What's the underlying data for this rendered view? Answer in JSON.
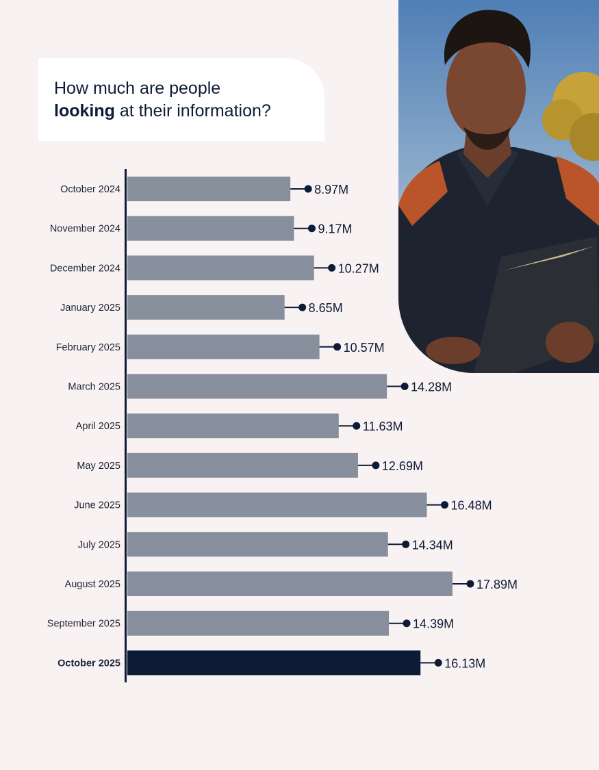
{
  "header": {
    "line1": "How much are people",
    "emphasis": "looking",
    "line2_rest": " at their information?"
  },
  "photo": {
    "alt": "Man looking at a tablet outdoors"
  },
  "colors": {
    "bar": "#868f9b",
    "highlight": "#0d1b36",
    "background": "#f9f2f2",
    "axis": "#0d1b36"
  },
  "chart_data": {
    "type": "bar",
    "orientation": "horizontal",
    "title": "How much are people looking at their information?",
    "categories": [
      "October 2024",
      "November 2024",
      "December 2024",
      "January 2025",
      "February 2025",
      "March 2025",
      "April 2025",
      "May 2025",
      "June 2025",
      "July 2025",
      "August 2025",
      "September 2025",
      "October 2025"
    ],
    "values": [
      8.97,
      9.17,
      10.27,
      8.65,
      10.57,
      14.28,
      11.63,
      12.69,
      16.48,
      14.34,
      17.89,
      14.39,
      16.13
    ],
    "value_labels": [
      "8.97M",
      "9.17M",
      "10.27M",
      "8.65M",
      "10.57M",
      "14.28M",
      "11.63M",
      "12.69M",
      "16.48M",
      "14.34M",
      "17.89M",
      "14.39M",
      "16.13M"
    ],
    "highlight_index": 12,
    "unit": "M"
  }
}
